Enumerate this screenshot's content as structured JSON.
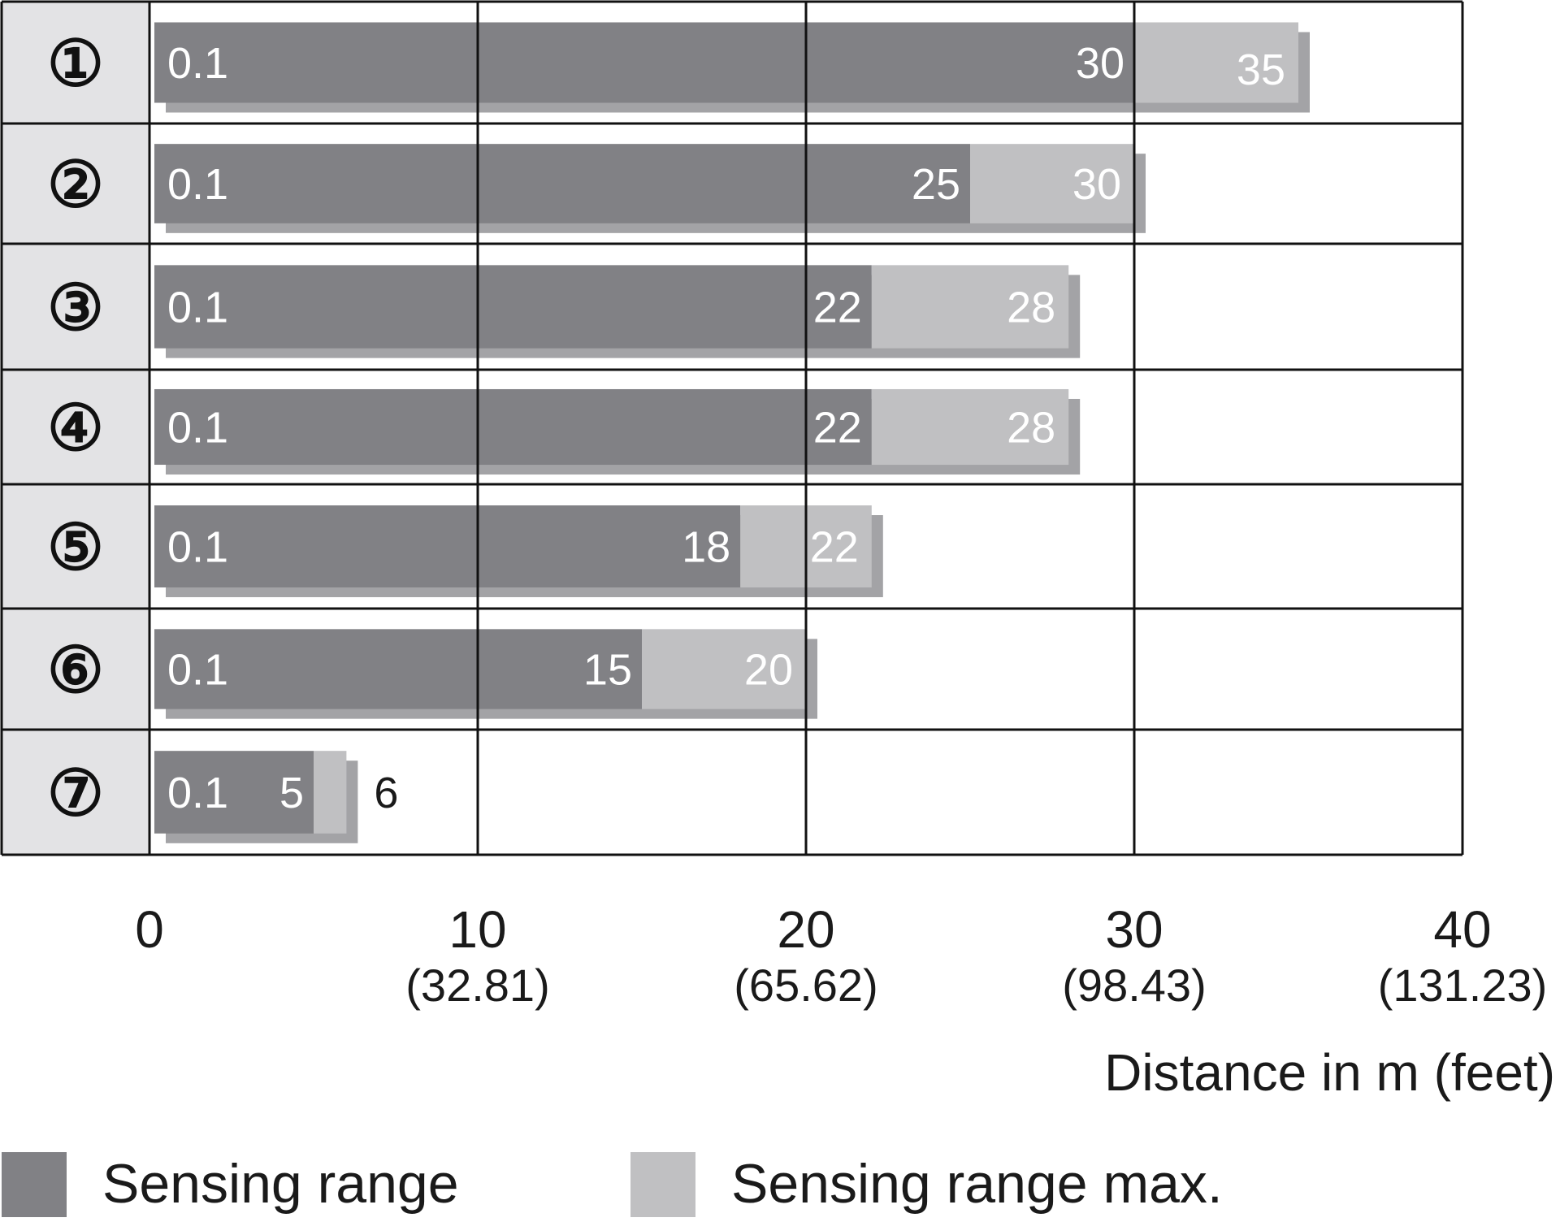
{
  "chart_data": {
    "type": "bar",
    "orientation": "horizontal",
    "categories": [
      "①",
      "②",
      "③",
      "④",
      "⑤",
      "⑥",
      "⑦"
    ],
    "series": [
      {
        "name": "Sensing range",
        "start": 0.1,
        "values": [
          30,
          25,
          22,
          22,
          18,
          15,
          5
        ]
      },
      {
        "name": "Sensing range max.",
        "values": [
          35,
          30,
          28,
          28,
          22,
          20,
          6
        ]
      }
    ],
    "start_label": "0.1",
    "xlim": [
      0,
      40
    ],
    "x_ticks": [
      {
        "value": 0,
        "label": "0",
        "sublabel": ""
      },
      {
        "value": 10,
        "label": "10",
        "sublabel": "(32.81)"
      },
      {
        "value": 20,
        "label": "20",
        "sublabel": "(65.62)"
      },
      {
        "value": 30,
        "label": "30",
        "sublabel": "(98.43)"
      },
      {
        "value": 40,
        "label": "40",
        "sublabel": "(131.23)"
      }
    ],
    "xlabel": "Distance in m (feet)",
    "grid": true,
    "legend_position": "bottom",
    "colors": {
      "sensing_range": "#818185",
      "sensing_range_max": "#c0c0c2",
      "shadow": "#a3a3a6",
      "row_label_bg": "#e3e3e5"
    }
  }
}
